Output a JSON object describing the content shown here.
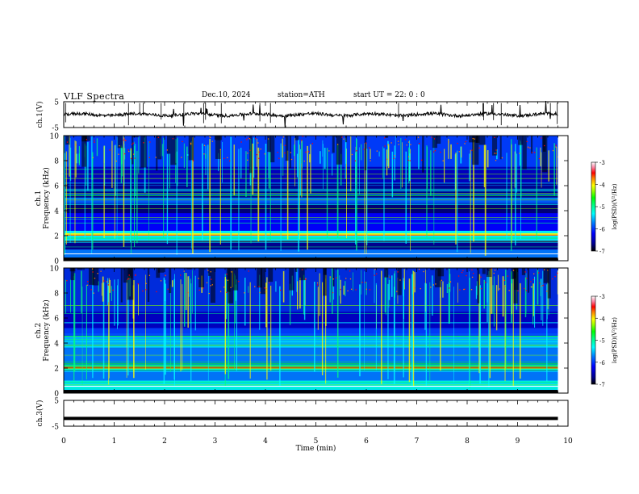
{
  "header": {
    "title": "VLF  Spectra",
    "date": "Dec.10, 2024",
    "station": "station=ATH",
    "start": "start  UT  =   22: 0   : 0"
  },
  "chart_data": [
    {
      "id": "ch1-waveform",
      "type": "line",
      "ylabel": "ch.1(V)",
      "yticks": [
        "5",
        "-5"
      ],
      "ylim": [
        -5,
        5
      ],
      "baseline": 0,
      "xlim": [
        0,
        10
      ],
      "description_of_trace": "noisy waveform near 0 V with occasional spikes",
      "data_end": 9.8
    },
    {
      "id": "ch1-spectrogram",
      "type": "heatmap",
      "ylabel_top": "ch.1",
      "ylabel": "Frequency  (kHz)",
      "yticks": [
        "0",
        "2",
        "4",
        "6",
        "8",
        "10"
      ],
      "ylim": [
        0,
        10
      ],
      "xlim": [
        0,
        10
      ],
      "data_end": 9.8,
      "colorbar": {
        "label": "log(PSD)(V²/Hz)",
        "ticks": [
          "-3",
          "-4",
          "-5",
          "-6",
          "-7"
        ],
        "range": [
          -7,
          -3
        ]
      }
    },
    {
      "id": "ch2-spectrogram",
      "type": "heatmap",
      "ylabel_top": "ch.2",
      "ylabel": "Frequency  (kHz)",
      "yticks": [
        "0",
        "2",
        "4",
        "6",
        "8",
        "10"
      ],
      "ylim": [
        0,
        10
      ],
      "xlim": [
        0,
        10
      ],
      "data_end": 9.8,
      "colorbar": {
        "label": "log(PSD)(V²/Hz)",
        "ticks": [
          "-3",
          "-4",
          "-5",
          "-6",
          "-7"
        ],
        "range": [
          -7,
          -3
        ]
      }
    },
    {
      "id": "ch3-waveform",
      "type": "line",
      "ylabel": "ch.3(V)",
      "yticks": [
        "5",
        "-5"
      ],
      "ylim": [
        -5,
        5
      ],
      "baseline": -2,
      "xlim": [
        0,
        10
      ],
      "data_end": 9.8
    }
  ],
  "xaxis": {
    "label": "Time  (min)",
    "ticks": [
      "0",
      "1",
      "2",
      "3",
      "4",
      "5",
      "6",
      "7",
      "8",
      "9",
      "10"
    ]
  },
  "colors": {
    "colormap": [
      "#000000",
      "#0000a0",
      "#0000ff",
      "#0080ff",
      "#00ffff",
      "#00ff80",
      "#00ff00",
      "#80ff00",
      "#ffff00",
      "#ff8000",
      "#ff0000",
      "#ffffff"
    ]
  }
}
